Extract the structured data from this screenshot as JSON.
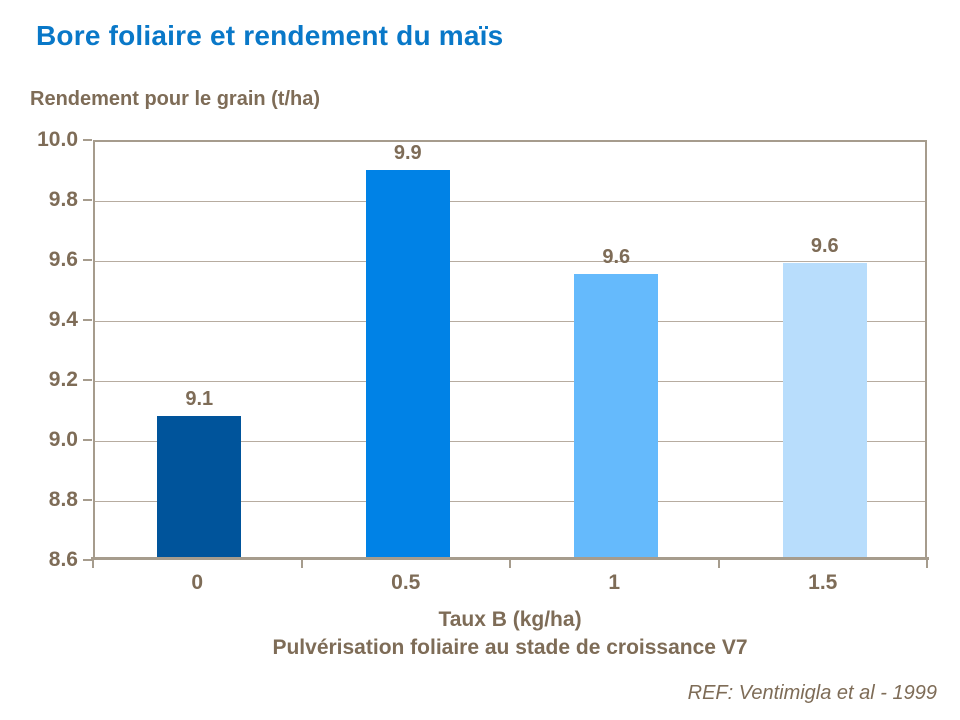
{
  "title": "Bore foliaire et rendement du maïs",
  "y_axis_title": "Rendement pour le grain (t/ha)",
  "x_axis_title": "Taux B (kg/ha)",
  "x_axis_subtitle": "Pulvérisation foliaire au stade de croissance V7",
  "reference": "REF: Ventimigla et al - 1999",
  "colors": {
    "title": "#0978C8",
    "text": "#7E6C57",
    "grid": "#B7ACA0",
    "axis": "#A69C8D",
    "bars": [
      "#00549B",
      "#0082E6",
      "#65BAFC",
      "#B8DDFC"
    ]
  },
  "chart_data": {
    "type": "bar",
    "title": "Bore foliaire et rendement du maïs",
    "xlabel": "Taux B (kg/ha)",
    "xlabel_line2": "Pulvérisation foliaire au stade de croissance V7",
    "ylabel": "Rendement pour le grain (t/ha)",
    "categories": [
      "0",
      "0.5",
      "1",
      "1.5"
    ],
    "values": [
      9.08,
      9.9,
      9.555,
      9.59
    ],
    "data_labels": [
      "9.1",
      "9.9",
      "9.6",
      "9.6"
    ],
    "ylim": [
      8.6,
      10.0
    ],
    "ytick_step": 0.2,
    "ytick_labels": [
      "10.0",
      "9.8",
      "9.6",
      "9.4",
      "9.2",
      "9.0",
      "8.8",
      "8.6"
    ],
    "grid": true,
    "legend": false,
    "annotation": "REF: Ventimigla et al - 1999"
  }
}
